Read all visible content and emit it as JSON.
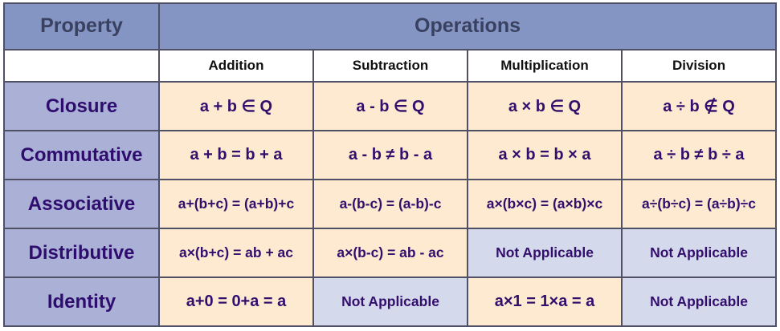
{
  "table": {
    "header": {
      "property": "Property",
      "operations": "Operations"
    },
    "columns": [
      "Addition",
      "Subtraction",
      "Multiplication",
      "Division"
    ],
    "rows": [
      {
        "label": "Closure",
        "cells": [
          {
            "text": "a + b ∈ Q",
            "applicable": true
          },
          {
            "text": "a - b ∈ Q",
            "applicable": true
          },
          {
            "text": "a × b ∈ Q",
            "applicable": true
          },
          {
            "text": "a ÷ b ∉ Q",
            "applicable": true
          }
        ]
      },
      {
        "label": "Commutative",
        "cells": [
          {
            "text": "a + b = b + a",
            "applicable": true
          },
          {
            "text": "a - b ≠ b - a",
            "applicable": true
          },
          {
            "text": "a × b = b × a",
            "applicable": true
          },
          {
            "text": "a ÷ b ≠ b ÷ a",
            "applicable": true
          }
        ]
      },
      {
        "label": "Associative",
        "cells": [
          {
            "text": "a+(b+c) = (a+b)+c",
            "applicable": true
          },
          {
            "text": "a-(b-c) = (a-b)-c",
            "applicable": true
          },
          {
            "text": "a×(b×c) = (a×b)×c",
            "applicable": true
          },
          {
            "text": "a÷(b÷c) = (a÷b)÷c",
            "applicable": true
          }
        ]
      },
      {
        "label": "Distributive",
        "cells": [
          {
            "text": "a×(b+c) = ab + ac",
            "applicable": true
          },
          {
            "text": "a×(b-c) = ab - ac",
            "applicable": true
          },
          {
            "text": "Not Applicable",
            "applicable": false
          },
          {
            "text": "Not Applicable",
            "applicable": false
          }
        ]
      },
      {
        "label": "Identity",
        "cells": [
          {
            "text": "a+0 = 0+a = a",
            "applicable": true
          },
          {
            "text": "Not Applicable",
            "applicable": false
          },
          {
            "text": "a×1 = 1×a = a",
            "applicable": true
          },
          {
            "text": "Not Applicable",
            "applicable": false
          }
        ]
      }
    ]
  },
  "colors": {
    "header_bg": "#8495c4",
    "header_text": "#394060",
    "row_label_bg": "#abb1d6",
    "formula_bg": "#fdead0",
    "not_applicable_bg": "#d4daeb",
    "subheader_bg": "#ffffff",
    "subheader_text": "#111111",
    "formula_text": "#330e6d",
    "border": "#4f4f66"
  }
}
